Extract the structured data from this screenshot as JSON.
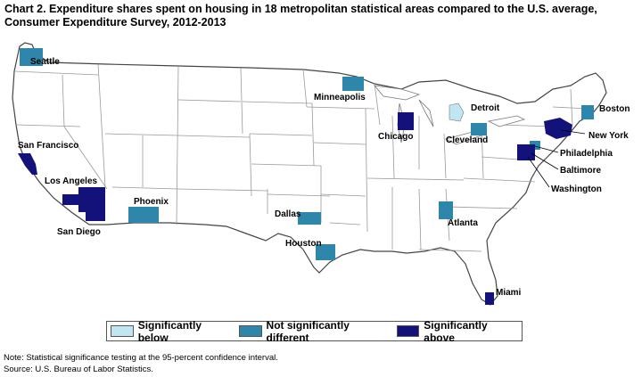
{
  "title": "Chart 2. Expenditure shares spent on housing in 18 metropolitan statistical areas compared to the U.S. average, Consumer Expenditure Survey, 2012-2013",
  "colors": {
    "below": "#bfe6f2",
    "not_different": "#2e86ab",
    "above": "#12127a",
    "state_line": "#999999",
    "border": "#444444"
  },
  "legend": [
    {
      "label": "Significantly below",
      "category": "below"
    },
    {
      "label": "Not significantly different",
      "category": "not_different"
    },
    {
      "label": "Significantly above",
      "category": "above"
    }
  ],
  "areas": [
    {
      "name": "Seattle",
      "category": "not_different"
    },
    {
      "name": "San Francisco",
      "category": "above"
    },
    {
      "name": "Los Angeles",
      "category": "above"
    },
    {
      "name": "San Diego",
      "category": "above"
    },
    {
      "name": "Phoenix",
      "category": "not_different"
    },
    {
      "name": "Minneapolis",
      "category": "not_different"
    },
    {
      "name": "Dallas",
      "category": "not_different"
    },
    {
      "name": "Houston",
      "category": "not_different"
    },
    {
      "name": "Chicago",
      "category": "above"
    },
    {
      "name": "Detroit",
      "category": "below"
    },
    {
      "name": "Cleveland",
      "category": "not_different"
    },
    {
      "name": "Atlanta",
      "category": "not_different"
    },
    {
      "name": "Miami",
      "category": "above"
    },
    {
      "name": "Boston",
      "category": "not_different"
    },
    {
      "name": "New York",
      "category": "above"
    },
    {
      "name": "Philadelphia",
      "category": "not_different"
    },
    {
      "name": "Baltimore",
      "category": "above"
    },
    {
      "name": "Washington",
      "category": "above"
    }
  ],
  "note": "Note: Statistical significance testing at the 95-percent confidence interval.",
  "source": "Source: U.S. Bureau of Labor Statistics."
}
